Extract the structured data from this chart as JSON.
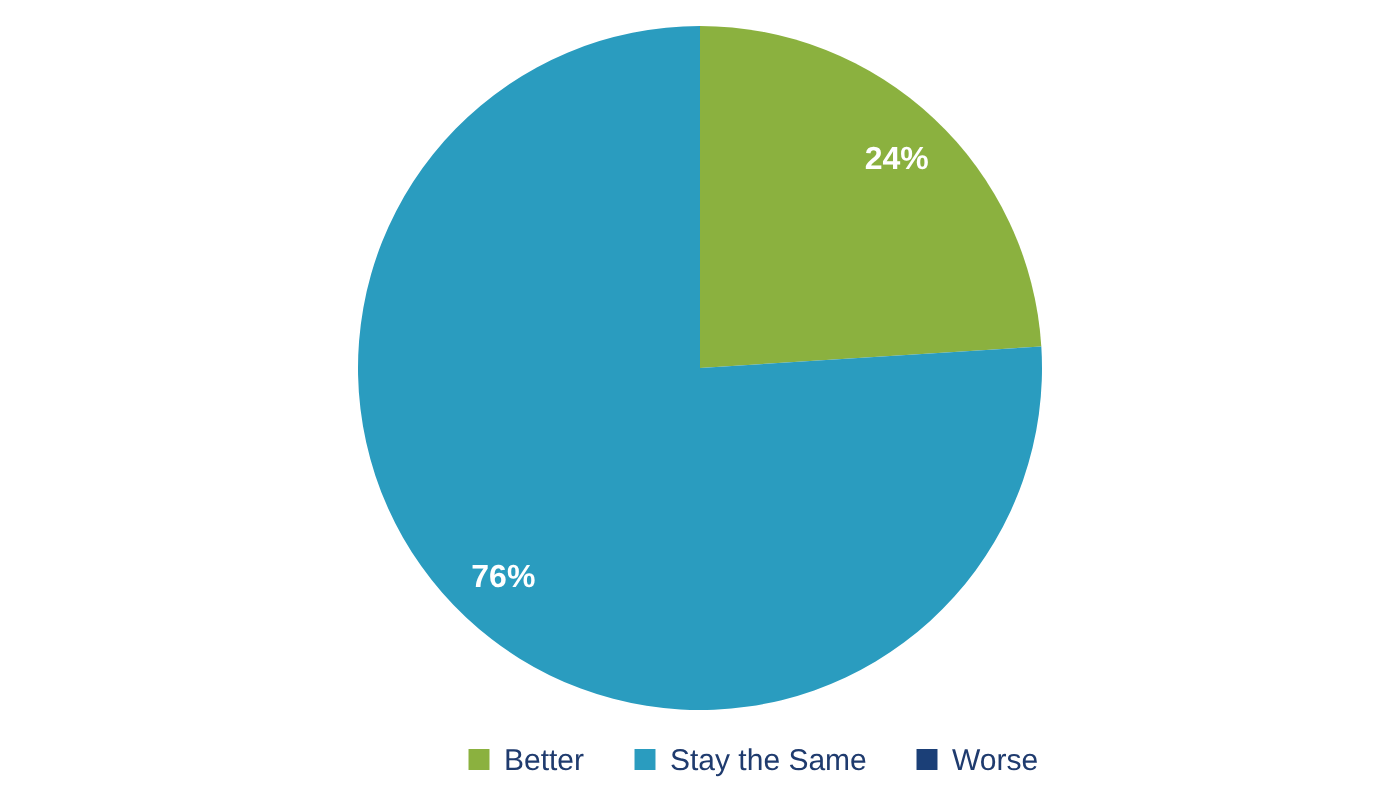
{
  "chart_data": {
    "type": "pie",
    "categories": [
      "Better",
      "Stay the Same",
      "Worse"
    ],
    "values": [
      24,
      76,
      0
    ],
    "colors": [
      "#8bb13f",
      "#2a9cbf",
      "#1b3f77"
    ],
    "value_labels": [
      "24%",
      "76%",
      null
    ],
    "legend": "bottom"
  }
}
